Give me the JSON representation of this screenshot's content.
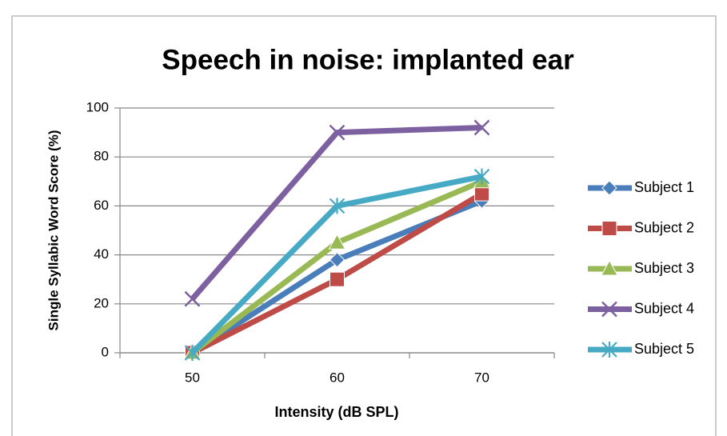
{
  "chart_data": {
    "type": "line",
    "title": "Speech in noise: implanted ear",
    "x_label": "Intensity (dB SPL)",
    "y_label": "Single Syllabic Word Score (%)",
    "categories": [
      "50",
      "60",
      "70"
    ],
    "series": [
      {
        "name": "Subject 1",
        "color": "#4a7ebb",
        "marker": "diamond",
        "values": [
          0,
          38,
          62
        ]
      },
      {
        "name": "Subject 2",
        "color": "#be4b48",
        "marker": "square",
        "values": [
          0,
          30,
          65
        ]
      },
      {
        "name": "Subject 3",
        "color": "#98b954",
        "marker": "triangle",
        "values": [
          0,
          45,
          70
        ]
      },
      {
        "name": "Subject 4",
        "color": "#7d60a0",
        "marker": "x",
        "values": [
          22,
          90,
          92
        ]
      },
      {
        "name": "Subject 5",
        "color": "#46aac5",
        "marker": "asterisk",
        "values": [
          0,
          60,
          72
        ]
      }
    ],
    "ylim": [
      0,
      100
    ],
    "yticks": [
      0,
      20,
      40,
      60,
      80,
      100
    ],
    "grid": true,
    "legend": "right"
  }
}
